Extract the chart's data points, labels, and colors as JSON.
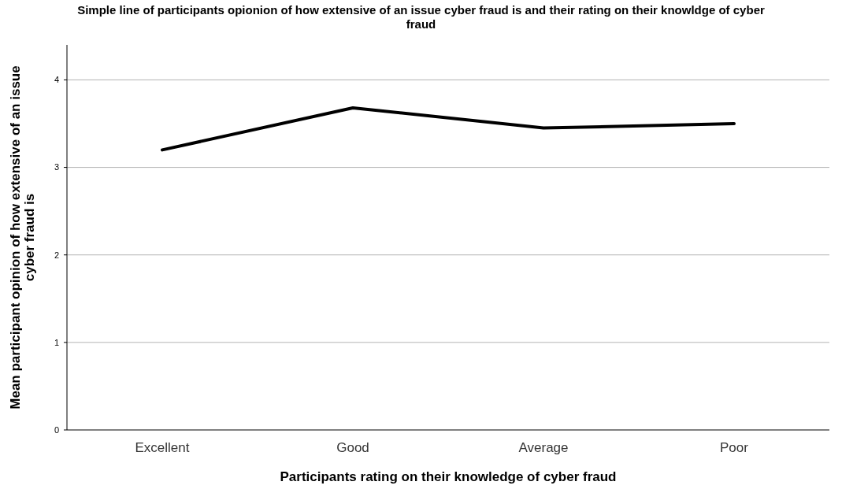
{
  "chart_data": {
    "type": "line",
    "title": "Simple line of participants opionion of how extensive of an issue cyber fraud is and their rating on their knowldge of cyber fraud",
    "xlabel": "Participants rating on their knowledge of cyber fraud",
    "ylabel": "Mean participant opinion of how extensive of an issue cyber fraud is",
    "categories": [
      "Excellent",
      "Good",
      "Average",
      "Poor"
    ],
    "series": [
      {
        "color": "#000000",
        "values": [
          3.2,
          3.68,
          3.45,
          3.5
        ]
      }
    ],
    "ylim": [
      0,
      4.4
    ],
    "yticks": [
      0,
      1,
      2,
      3,
      4
    ],
    "grid": "y",
    "marker": "none",
    "line_style": "solid"
  }
}
